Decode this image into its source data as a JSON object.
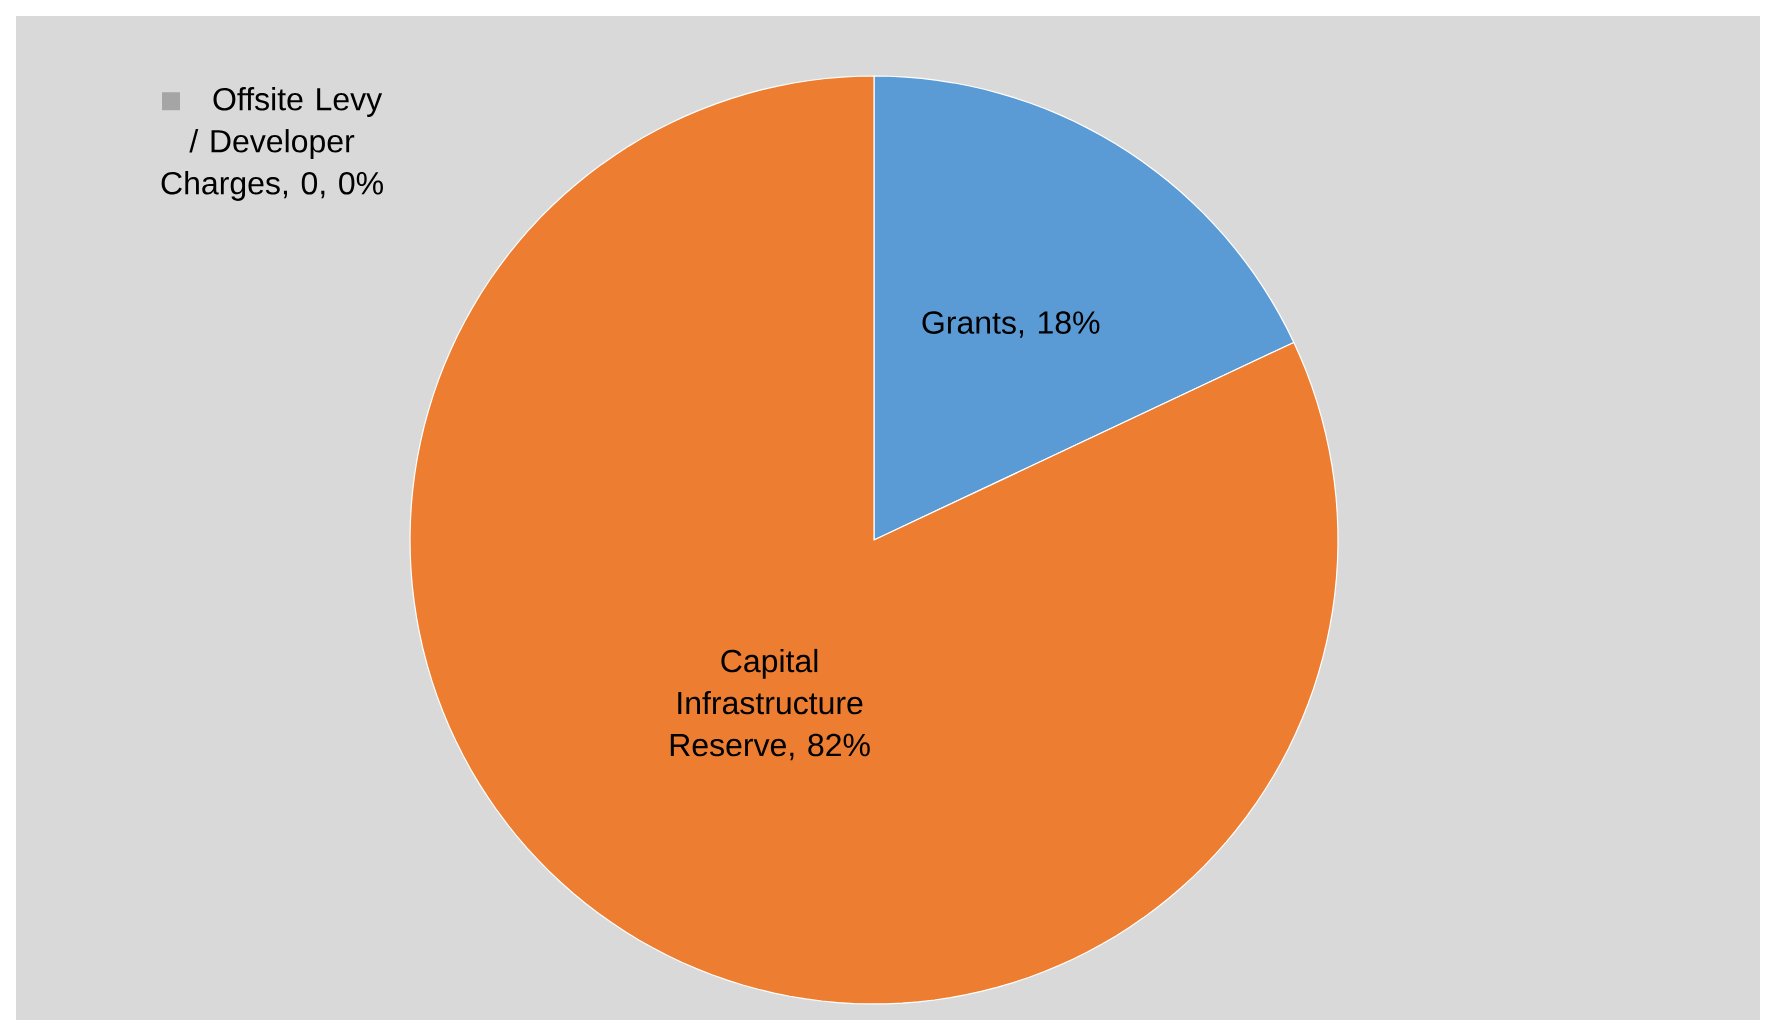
{
  "chart_data": {
    "type": "pie",
    "categories": [
      "Offsite Levy / Developer Charges",
      "Grants",
      "Capital Infrastructure Reserve"
    ],
    "values": [
      0,
      18,
      82
    ],
    "colors": [
      "#a5a5a5",
      "#5b9bd5",
      "#ed7d31"
    ],
    "value_labels": [
      ", 0, 0%",
      ", 18%",
      ", 82%"
    ],
    "legend": "top left"
  }
}
